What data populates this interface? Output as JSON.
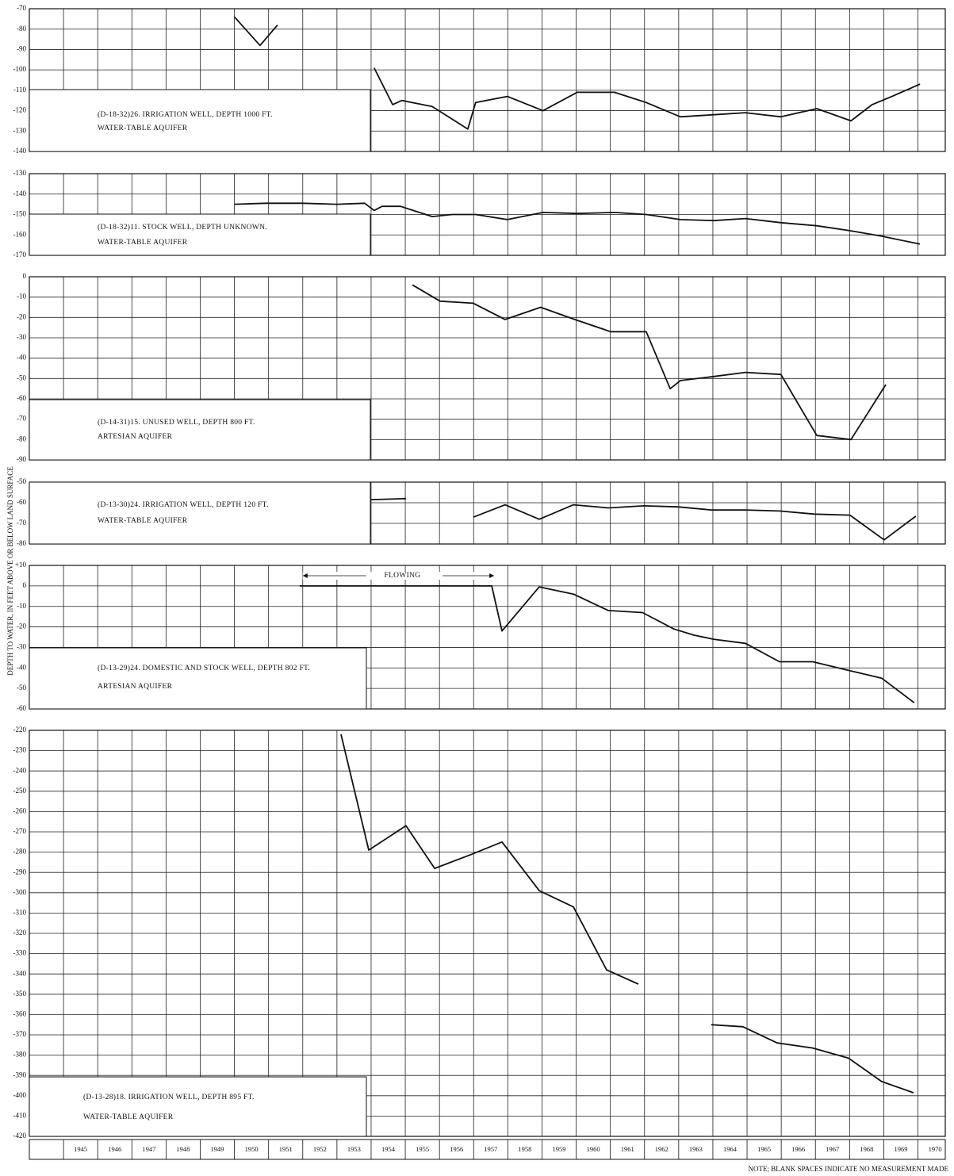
{
  "ylabel": "DEPTH TO WATER, IN FEET ABOVE OR BELOW LAND SURFACE",
  "note": "NOTE; BLANK SPACES INDICATE NO MEASUREMENT MADE",
  "chart_data": [
    {
      "type": "line",
      "title": "(D-18-32)26.  IRRIGATION WELL, DEPTH 1000 FT.",
      "subtitle": "WATER-TABLE AQUIFER",
      "color": "#111111",
      "ylim": [
        -140,
        -70
      ],
      "yticks": [
        -70,
        -80,
        -90,
        -100,
        -110,
        -120,
        -130,
        -140
      ],
      "x": [
        1950.0,
        1950.75,
        1951.26,
        null,
        1954.09,
        1954.63,
        1954.9,
        1955.79,
        1956.83,
        1957.06,
        1957.99,
        1959.03,
        1960.03,
        1961.12,
        1962.05,
        1963.05,
        1964.02,
        1964.95,
        1965.99,
        1967.04,
        1968.04,
        1968.66,
        1969.24,
        1970.06
      ],
      "values": [
        -74,
        -88,
        -78,
        null,
        -99,
        -117,
        -115,
        -118,
        -129,
        -116,
        -113,
        -120,
        -111,
        -111,
        -116,
        -123,
        -122,
        -121,
        -123,
        -119,
        -125,
        -117,
        -113,
        -107
      ]
    },
    {
      "type": "line",
      "title": "(D-18-32)11.  STOCK WELL, DEPTH UNKNOWN.",
      "subtitle": "WATER-TABLE AQUIFER",
      "color": "#111111",
      "ylim": [
        -170,
        -130
      ],
      "yticks": [
        -130,
        -140,
        -150,
        -160,
        -170
      ],
      "x": [
        1950.0,
        1950.91,
        1951.96,
        1953.0,
        1953.81,
        1954.09,
        1954.32,
        1954.86,
        1955.79,
        1956.37,
        1957.06,
        1957.99,
        1959.03,
        1960.03,
        1961.12,
        1962.05,
        1963.05,
        1964.02,
        1964.95,
        1965.99,
        1967.04,
        1968.04,
        1968.9,
        1970.06
      ],
      "values": [
        -145,
        -144.5,
        -144.5,
        -145,
        -144.5,
        -148,
        -146,
        -146,
        -151,
        -150,
        -150,
        -152.5,
        -149,
        -149.5,
        -149,
        -150,
        -152.5,
        -153,
        -152,
        -154,
        -155.5,
        -158,
        -160.5,
        -164.5
      ]
    },
    {
      "type": "line",
      "title": "(D-14-31)15.  UNUSED WELL, DEPTH 800 FT.",
      "subtitle": "ARTESIAN AQUIFER",
      "color": "#111111",
      "ylim": [
        -90,
        0
      ],
      "yticks": [
        0,
        -10,
        -20,
        -30,
        -40,
        -50,
        -60,
        -70,
        -80,
        -90
      ],
      "x": [
        1955.21,
        1956.02,
        1956.99,
        1957.92,
        1958.96,
        1959.96,
        1961.01,
        1962.05,
        1962.75,
        1963.05,
        1964.02,
        1964.95,
        1965.99,
        1967.04,
        1968.04,
        1969.06
      ],
      "values": [
        -4,
        -12,
        -13,
        -21,
        -15,
        -21,
        -27,
        -27,
        -55,
        -51,
        -49,
        -47,
        -48,
        -78,
        -80,
        -53
      ]
    },
    {
      "type": "line",
      "title": "(D-13-30)24.  IRRIGATION WELL, DEPTH 120 FT.",
      "subtitle": "WATER-TABLE AQUIFER",
      "color": "#111111",
      "ylim": [
        -80,
        -50
      ],
      "yticks": [
        -50,
        -60,
        -70,
        -80
      ],
      "x": [
        1953.98,
        1955.02,
        null,
        1956.99,
        1957.92,
        1958.92,
        1959.92,
        1960.94,
        1961.98,
        1962.98,
        1963.95,
        1964.95,
        1965.95,
        1966.97,
        1968.01,
        1969.01,
        1969.94
      ],
      "values": [
        -58.5,
        -58,
        null,
        -67,
        -61,
        -68,
        -61,
        -62.5,
        -61.5,
        -62,
        -63.5,
        -63.5,
        -64,
        -65.5,
        -66,
        -78,
        -66.5
      ]
    },
    {
      "type": "line",
      "title": "(D-13-29)24.  DOMESTIC AND STOCK WELL, DEPTH 802 FT.",
      "subtitle": "ARTESIAN AQUIFER",
      "annotation": "FLOWING",
      "color": "#111111",
      "ylim": [
        -60,
        10
      ],
      "yticks": [
        {
          "value": 10,
          "label": "+10"
        },
        0,
        -10,
        -20,
        -30,
        -40,
        -50,
        -60
      ],
      "x": [
        1951.91,
        1952.89,
        1953.88,
        1954.9,
        1955.9,
        1956.83,
        1957.53,
        1957.83,
        1958.92,
        1959.92,
        1960.94,
        1961.94,
        1962.86,
        1963.44,
        1964.02,
        1964.95,
        1965.95,
        1966.92,
        1967.92,
        1968.94,
        1969.89
      ],
      "values": [
        0,
        0,
        0,
        0,
        0,
        0,
        0,
        -22,
        -0.5,
        -4,
        -12,
        -13,
        -21,
        -24,
        -26,
        -28,
        -37,
        -37,
        -41,
        -45,
        -57
      ]
    },
    {
      "type": "line",
      "title": "(D-13-28)18.  IRRIGATION WELL, DEPTH 895 FT.",
      "subtitle": "WATER-TABLE AQUIFER",
      "color": "#111111",
      "ylim": [
        -420,
        -220
      ],
      "yticks": [
        -220,
        -230,
        -240,
        -250,
        -260,
        -270,
        -280,
        -290,
        -300,
        -310,
        -320,
        -330,
        -340,
        -350,
        -360,
        -370,
        -380,
        -390,
        -400,
        -410,
        -420
      ],
      "xlim": [
        1944,
        1970.8
      ],
      "xticks": [
        1945,
        1946,
        1947,
        1948,
        1949,
        1950,
        1951,
        1952,
        1953,
        1954,
        1955,
        1956,
        1957,
        1958,
        1959,
        1960,
        1961,
        1962,
        1963,
        1964,
        1965,
        1966,
        1967,
        1968,
        1969,
        1970
      ],
      "x": [
        1953.12,
        1953.93,
        1955.02,
        1955.86,
        1956.95,
        1957.83,
        1958.92,
        1959.92,
        1960.89,
        1961.82,
        null,
        1963.95,
        1964.88,
        1965.88,
        1966.92,
        1967.97,
        1968.94,
        1969.87
      ],
      "values": [
        -222,
        -279,
        -267,
        -288,
        -281,
        -275,
        -299,
        -307,
        -338,
        -345,
        null,
        -365,
        -366,
        -374,
        -376.5,
        -381.5,
        -393,
        -398.5
      ]
    }
  ]
}
